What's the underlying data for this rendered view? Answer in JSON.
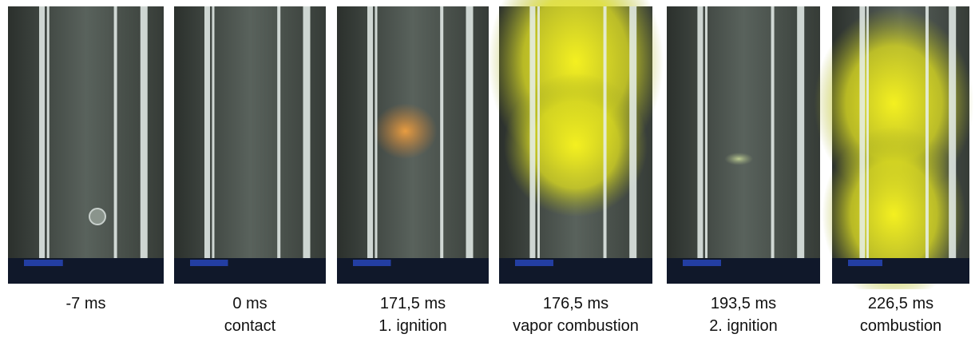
{
  "frames": [
    {
      "time": "-7 ms"
    },
    {
      "time": "0 ms",
      "label": "contact"
    },
    {
      "time": "171,5 ms",
      "label": "1. ignition"
    },
    {
      "time": "176,5 ms",
      "label": "vapor combustion"
    },
    {
      "time": "193,5 ms",
      "label": "2. ignition"
    },
    {
      "time": "226,5 ms",
      "label": "combustion"
    }
  ]
}
